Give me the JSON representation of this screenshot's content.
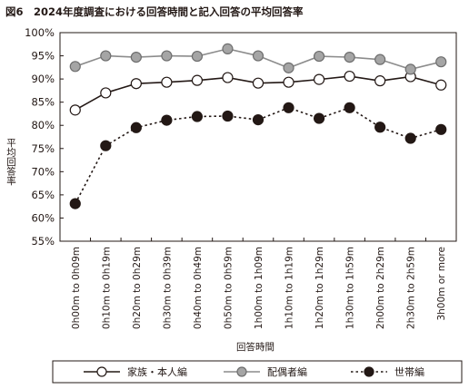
{
  "chart_data": {
    "type": "line",
    "title": "図6　2024年度調査における回答時間と記入回答の平均回答率",
    "xlabel": "回答時間",
    "ylabel": "平均回答率",
    "ylim": [
      55,
      100
    ],
    "y_ticks": [
      "55%",
      "60%",
      "65%",
      "70%",
      "75%",
      "80%",
      "85%",
      "90%",
      "95%",
      "100%"
    ],
    "grid": false,
    "legend_position": "bottom",
    "categories": [
      "0h00m to 0h09m",
      "0h10m to 0h19m",
      "0h20m to 0h29m",
      "0h30m to 0h39m",
      "0h40m to 0h49m",
      "0h50m to 0h59m",
      "1h00m to 1h09m",
      "1h10m to 1h19m",
      "1h20m to 1h29m",
      "1h30m to 1h59m",
      "2h00m to 2h29m",
      "2h30m to 2h59m",
      "3h00m or more"
    ],
    "series": [
      {
        "name": "家族・本人編",
        "style": "solid-open",
        "color": "#231815",
        "values": [
          83.3,
          87.0,
          89.0,
          89.3,
          89.7,
          90.3,
          89.1,
          89.3,
          89.9,
          90.6,
          89.6,
          90.5,
          88.7
        ]
      },
      {
        "name": "配偶者編",
        "style": "solid-gray",
        "color": "#8c8c8c",
        "values": [
          92.7,
          95.0,
          94.7,
          95.0,
          94.9,
          96.5,
          95.0,
          92.4,
          94.9,
          94.7,
          94.2,
          92.1,
          93.7
        ]
      },
      {
        "name": "世帯編",
        "style": "dotted-filled",
        "color": "#231815",
        "values": [
          63.1,
          75.6,
          79.5,
          81.1,
          81.9,
          82.0,
          81.2,
          83.8,
          81.5,
          83.8,
          79.6,
          77.2,
          79.1
        ]
      }
    ]
  }
}
